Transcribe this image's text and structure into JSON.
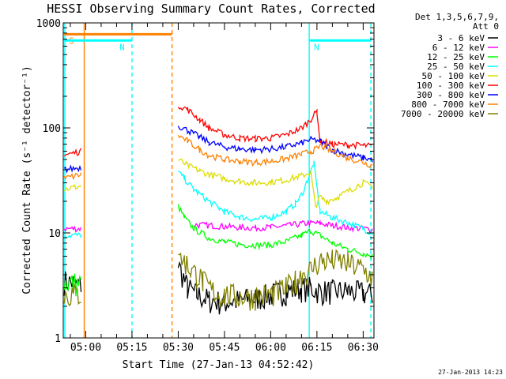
{
  "chart_data": {
    "type": "line",
    "title": "HESSI Observing Summary Count Rates, Corrected",
    "xlabel": "Start Time (27-Jan-13 04:52:42)",
    "ylabel": "Corrected Count Rate (s⁻¹ detector⁻¹)",
    "ylog": true,
    "xlim_min": [
      52.7,
      153.5
    ],
    "ylim": [
      1,
      1000
    ],
    "xticks": [
      {
        "m": 60,
        "label": "05:00"
      },
      {
        "m": 75,
        "label": "05:15"
      },
      {
        "m": 90,
        "label": "05:30"
      },
      {
        "m": 105,
        "label": "05:45"
      },
      {
        "m": 120,
        "label": "06:00"
      },
      {
        "m": 135,
        "label": "06:15"
      },
      {
        "m": 150,
        "label": "06:30"
      }
    ],
    "yticks": [
      {
        "v": 1,
        "label": "1"
      },
      {
        "v": 10,
        "label": "10"
      },
      {
        "v": 100,
        "label": "100"
      },
      {
        "v": 1000,
        "label": "1000"
      }
    ],
    "legend": {
      "header": [
        "Det 1,3,5,6,7,9,",
        "Att 0"
      ],
      "placement": "right-outside"
    },
    "series": [
      {
        "name": "3 - 6 keV",
        "color": "#000000",
        "x": [
          53,
          58.5,
          87,
          88,
          90,
          93,
          96,
          100,
          105,
          110,
          115,
          120,
          125,
          130,
          133,
          136,
          140,
          145,
          150,
          153
        ],
        "y": [
          3.5,
          3.2,
          null,
          null,
          5,
          3,
          2.6,
          2.3,
          2.2,
          2.3,
          2.4,
          2.6,
          2.8,
          3,
          3,
          2.8,
          2.8,
          2.8,
          2.7,
          2.6
        ]
      },
      {
        "name": "6 - 12 keV",
        "color": "#ff00ff",
        "x": [
          53,
          58.5,
          90,
          95,
          100,
          105,
          110,
          115,
          120,
          125,
          130,
          133,
          136,
          140,
          145,
          150,
          153
        ],
        "y": [
          11,
          11,
          null,
          12,
          11.8,
          11.5,
          11.3,
          11.2,
          11.3,
          11.7,
          12.2,
          12.5,
          12.3,
          11.8,
          11.3,
          11,
          10.8
        ]
      },
      {
        "name": "12 - 25 keV",
        "color": "#00ff00",
        "x": [
          53,
          58.5,
          90,
          92,
          95,
          100,
          105,
          110,
          115,
          120,
          125,
          130,
          133,
          136,
          140,
          145,
          150,
          153
        ],
        "y": [
          3.4,
          3.3,
          18,
          14,
          11,
          9,
          8.2,
          7.8,
          7.6,
          7.7,
          8.3,
          9.5,
          10.5,
          9.5,
          8,
          7,
          6.4,
          6
        ]
      },
      {
        "name": "25 - 50 keV",
        "color": "#00ffff",
        "x": [
          53,
          58.5,
          90,
          92,
          95,
          100,
          105,
          110,
          115,
          120,
          125,
          128,
          130,
          132,
          134,
          136,
          140,
          145,
          150,
          153
        ],
        "y": [
          9.5,
          9.5,
          38,
          33,
          26,
          20,
          16,
          14.2,
          13.5,
          14,
          16,
          19,
          23,
          32,
          46,
          16,
          14,
          12.5,
          11,
          10
        ]
      },
      {
        "name": "50 - 100 keV",
        "color": "#dddd00",
        "x": [
          53,
          58.5,
          90,
          93,
          97,
          100,
          105,
          110,
          115,
          120,
          125,
          130,
          133,
          134.5,
          136,
          138,
          142,
          146,
          150,
          153
        ],
        "y": [
          26,
          28,
          50,
          44,
          39,
          36,
          33,
          31,
          30,
          30.5,
          32,
          35,
          38,
          18,
          22,
          20,
          22,
          26,
          30,
          28
        ]
      },
      {
        "name": "100 - 300 keV",
        "color": "#ff0000",
        "x": [
          53,
          58.5,
          90,
          93,
          97,
          100,
          105,
          110,
          115,
          120,
          125,
          130,
          133,
          135,
          136,
          140,
          145,
          150,
          153
        ],
        "y": [
          55,
          60,
          165,
          150,
          120,
          100,
          86,
          80,
          79,
          80,
          86,
          100,
          120,
          145,
          75,
          70,
          69,
          68,
          67
        ]
      },
      {
        "name": "300 - 800 keV",
        "color": "#0000ff",
        "x": [
          53,
          58.5,
          90,
          93,
          97,
          100,
          105,
          110,
          115,
          120,
          125,
          130,
          133,
          136,
          140,
          145,
          150,
          153
        ],
        "y": [
          40,
          42,
          105,
          95,
          82,
          73,
          66,
          63,
          62,
          63,
          66,
          72,
          78,
          75,
          62,
          56,
          52,
          50
        ]
      },
      {
        "name": "800 - 7000 keV",
        "color": "#ff8000",
        "x": [
          53,
          58.5,
          90,
          93,
          97,
          100,
          105,
          110,
          115,
          120,
          125,
          130,
          133,
          135,
          136,
          140,
          145,
          150,
          153
        ],
        "y": [
          33,
          36,
          85,
          75,
          62,
          55,
          50,
          48,
          47,
          48,
          51,
          56,
          60,
          63,
          68,
          60,
          52,
          47,
          44
        ]
      },
      {
        "name": "7000 - 20000 keV",
        "color": "#808000",
        "x": [
          53,
          58.5,
          90,
          92,
          94,
          96,
          98,
          100,
          103,
          105,
          110,
          115,
          120,
          125,
          128,
          130,
          133,
          136,
          140,
          145,
          150,
          153
        ],
        "y": [
          2.6,
          2.6,
          6.5,
          5.5,
          4.5,
          4,
          3.5,
          3,
          2.6,
          2.6,
          2.5,
          2.5,
          2.6,
          3,
          3.5,
          4,
          4.5,
          5.5,
          5.5,
          5.2,
          4.5,
          3.8
        ]
      }
    ],
    "flags": [
      {
        "label": "S",
        "color": "#ff8000",
        "start": 53,
        "end": 88,
        "level": 780
      },
      {
        "label": "N",
        "color": "#00ffff",
        "start": 53,
        "end": 75,
        "level": 680
      },
      {
        "label": "N",
        "color": "#00ffff",
        "start": 132.5,
        "end": 152.5,
        "level": 680
      }
    ],
    "markers": [
      {
        "m": 53.2,
        "color": "#00ffff",
        "style": "solid"
      },
      {
        "m": 59.5,
        "color": "#ff8000",
        "style": "solid"
      },
      {
        "m": 75,
        "color": "#00ffff",
        "style": "dashed"
      },
      {
        "m": 88,
        "color": "#ff8000",
        "style": "dashed"
      },
      {
        "m": 132.5,
        "color": "#00ffff",
        "style": "solid"
      },
      {
        "m": 152.5,
        "color": "#00ffff",
        "style": "dashed"
      }
    ]
  },
  "timestamp": "27-Jan-2013 14:23"
}
